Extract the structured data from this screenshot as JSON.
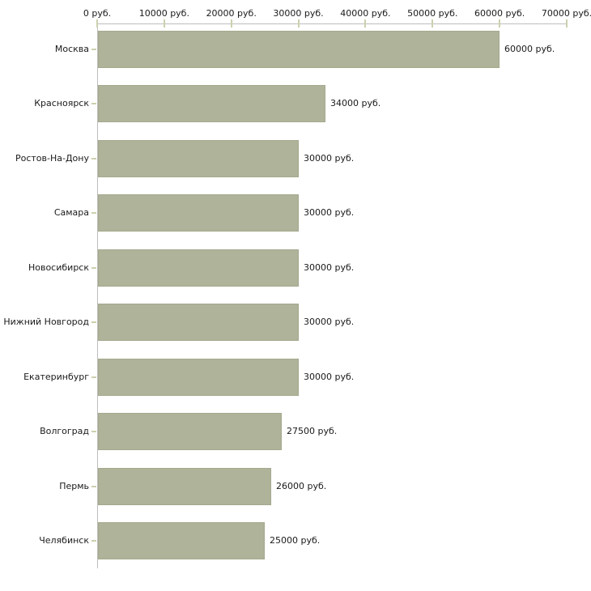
{
  "chart_data": {
    "type": "bar",
    "orientation": "horizontal",
    "title": "",
    "xlabel": "",
    "ylabel": "",
    "categories": [
      "Москва",
      "Красноярск",
      "Ростов-На-Дону",
      "Самара",
      "Новосибирск",
      "Нижний Новгород",
      "Екатеринбург",
      "Волгоград",
      "Пермь",
      "Челябинск"
    ],
    "values": [
      60000,
      34000,
      30000,
      30000,
      30000,
      30000,
      30000,
      27500,
      26000,
      25000
    ],
    "value_labels": [
      "60000 руб.",
      "34000 руб.",
      "30000 руб.",
      "30000 руб.",
      "30000 руб.",
      "30000 руб.",
      "30000 руб.",
      "27500 руб.",
      "26000 руб.",
      "25000 руб."
    ],
    "x_tick_values": [
      0,
      10000,
      20000,
      30000,
      40000,
      50000,
      60000,
      70000
    ],
    "x_tick_labels": [
      "0 руб.",
      "10000 руб.",
      "20000 руб.",
      "30000 руб.",
      "40000 руб.",
      "50000 руб.",
      "60000 руб.",
      "70000 руб."
    ],
    "xlim": [
      0,
      70000
    ],
    "grid": false,
    "legend": false,
    "axis_position": "top",
    "colors": {
      "bar_fill": "#aeb399",
      "bar_border": "#a5aa8e",
      "axis_line": "#bdbdbd",
      "tick_mark": "#cdd0ad",
      "label_text": "#1a1a1a",
      "background": "#ffffff"
    }
  }
}
